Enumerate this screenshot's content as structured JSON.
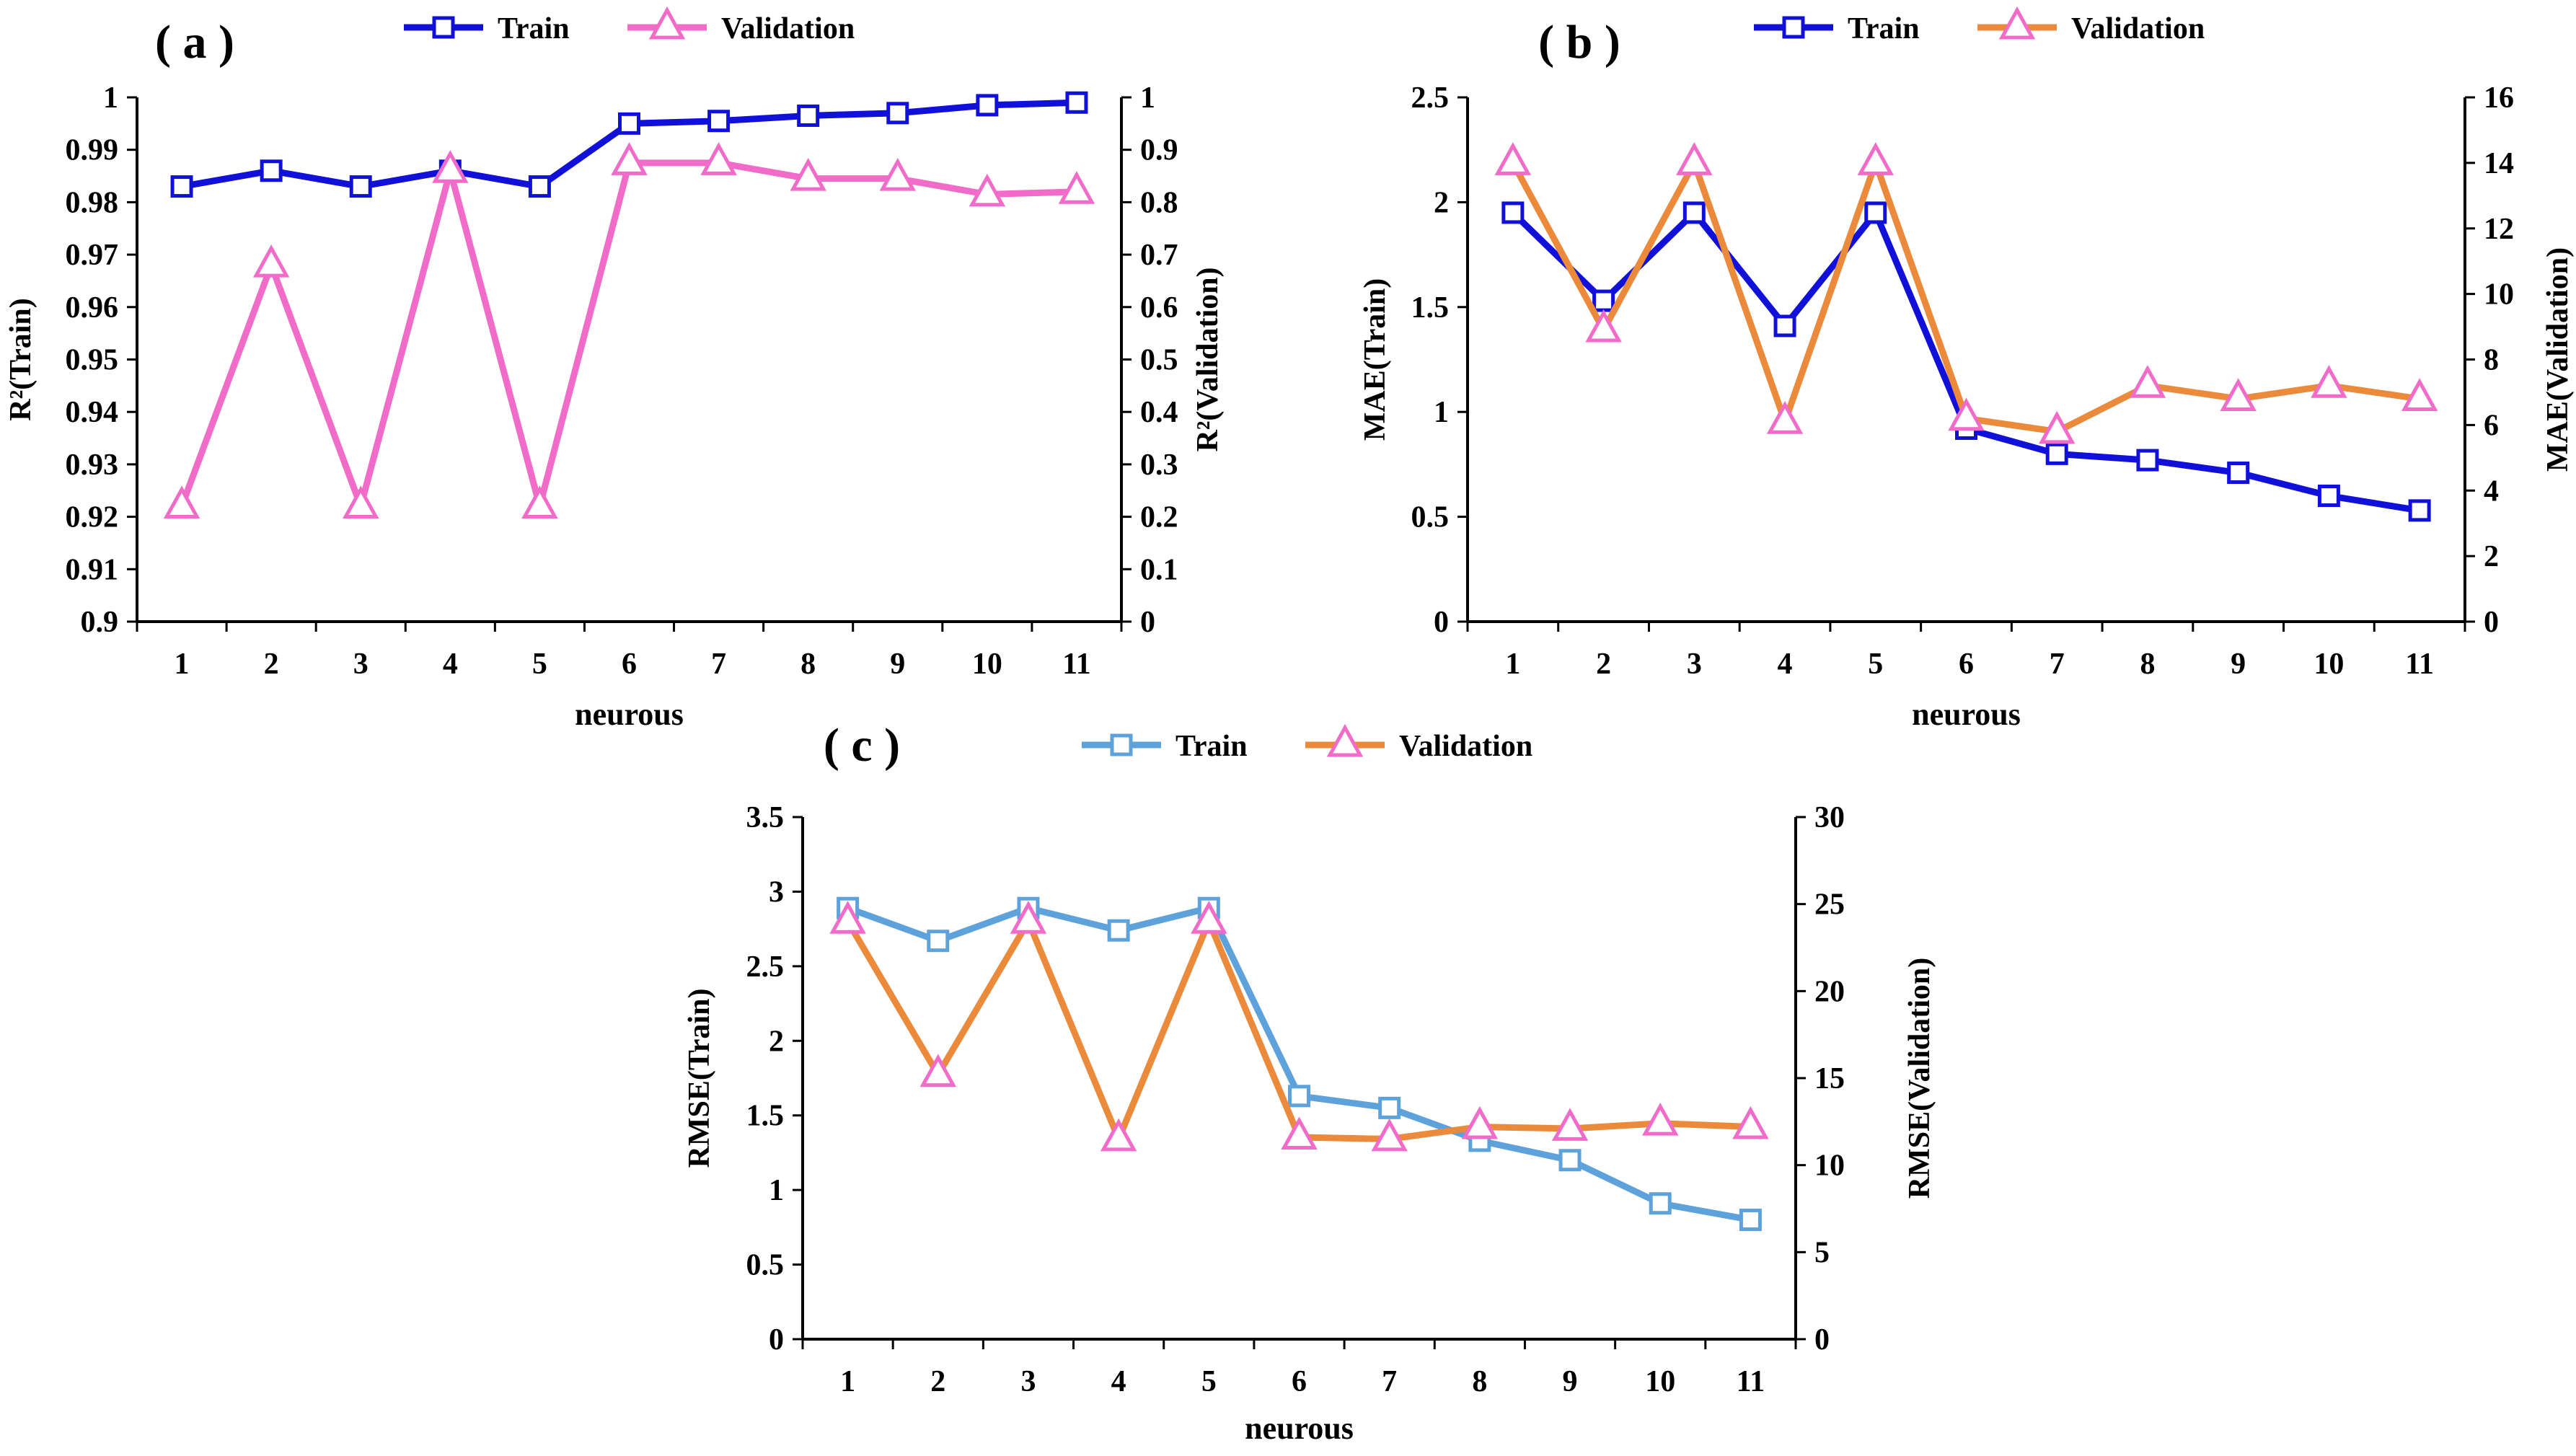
{
  "chart_data": [
    {
      "type": "line",
      "panel_label": "( a )",
      "title": "",
      "xlabel": "neurous",
      "ylabel_left": "R²(Train)",
      "ylabel_right": "R²(Validation)",
      "categories": [
        "1",
        "2",
        "3",
        "4",
        "5",
        "6",
        "7",
        "8",
        "9",
        "10",
        "11"
      ],
      "ylim_left": [
        0.9,
        1.0
      ],
      "yticks_left": [
        "0.9",
        "0.91",
        "0.92",
        "0.93",
        "0.94",
        "0.95",
        "0.96",
        "0.97",
        "0.98",
        "0.99",
        "1"
      ],
      "ylim_right": [
        0,
        1.0
      ],
      "yticks_right": [
        "0",
        "0.1",
        "0.2",
        "0.3",
        "0.4",
        "0.5",
        "0.6",
        "0.7",
        "0.8",
        "0.9",
        "1"
      ],
      "legend_position": "top-center",
      "series": [
        {
          "name": "Train",
          "axis": "left",
          "color": "#1010d8",
          "marker": "square",
          "values": [
            0.983,
            0.986,
            0.983,
            0.986,
            0.983,
            0.995,
            0.9955,
            0.9965,
            0.997,
            0.9985,
            0.999
          ]
        },
        {
          "name": "Validation",
          "axis": "right",
          "color": "#f06cc8",
          "marker": "triangle",
          "values": [
            0.22,
            0.68,
            0.22,
            0.86,
            0.22,
            0.875,
            0.875,
            0.845,
            0.845,
            0.815,
            0.82
          ]
        }
      ]
    },
    {
      "type": "line",
      "panel_label": "( b )",
      "title": "",
      "xlabel": "neurous",
      "ylabel_left": "MAE(Train)",
      "ylabel_right": "MAE(Validation)",
      "categories": [
        "1",
        "2",
        "3",
        "4",
        "5",
        "6",
        "7",
        "8",
        "9",
        "10",
        "11"
      ],
      "ylim_left": [
        0,
        2.5
      ],
      "yticks_left": [
        "0",
        "0.5",
        "1",
        "1.5",
        "2",
        "2.5"
      ],
      "ylim_right": [
        0,
        16
      ],
      "yticks_right": [
        "0",
        "2",
        "4",
        "6",
        "8",
        "10",
        "12",
        "14",
        "16"
      ],
      "legend_position": "top-center",
      "series": [
        {
          "name": "Train",
          "axis": "left",
          "color": "#1010d8",
          "marker": "square",
          "values": [
            1.95,
            1.53,
            1.95,
            1.41,
            1.95,
            0.92,
            0.8,
            0.77,
            0.71,
            0.6,
            0.53
          ]
        },
        {
          "name": "Validation",
          "axis": "right",
          "color": "#ec8a3c",
          "marker": "triangle",
          "values": [
            14.0,
            8.9,
            14.0,
            6.1,
            14.0,
            6.2,
            5.8,
            7.2,
            6.8,
            7.2,
            6.8
          ]
        }
      ]
    },
    {
      "type": "line",
      "panel_label": "( c )",
      "title": "",
      "xlabel": "neurous",
      "ylabel_left": "RMSE(Train)",
      "ylabel_right": "RMSE(Validation)",
      "categories": [
        "1",
        "2",
        "3",
        "4",
        "5",
        "6",
        "7",
        "8",
        "9",
        "10",
        "11"
      ],
      "ylim_left": [
        0,
        3.5
      ],
      "yticks_left": [
        "0",
        "0.5",
        "1",
        "1.5",
        "2",
        "2.5",
        "3",
        "3.5"
      ],
      "ylim_right": [
        0,
        30
      ],
      "yticks_right": [
        "0",
        "5",
        "10",
        "15",
        "20",
        "25",
        "30"
      ],
      "legend_position": "top-center",
      "series": [
        {
          "name": "Train",
          "axis": "left",
          "color": "#5ea2dc",
          "marker": "square",
          "values": [
            2.89,
            2.67,
            2.89,
            2.74,
            2.89,
            1.63,
            1.55,
            1.33,
            1.2,
            0.91,
            0.8
          ]
        },
        {
          "name": "Validation",
          "axis": "right",
          "color": "#ec8a3c",
          "marker": "triangle",
          "values": [
            24.0,
            15.2,
            24.0,
            11.5,
            24.0,
            11.6,
            11.5,
            12.2,
            12.1,
            12.4,
            12.2
          ]
        }
      ]
    }
  ],
  "styles": {
    "axis_color": "#000000",
    "marker_face": "#ffffff",
    "triangle_edge": "#f06cc8"
  }
}
